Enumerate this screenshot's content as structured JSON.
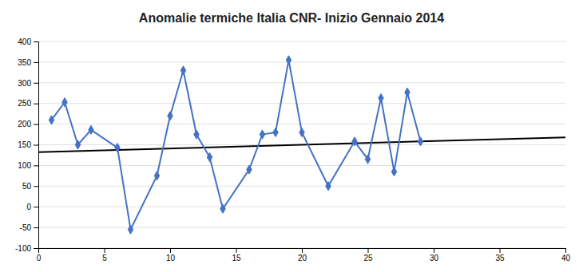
{
  "chart_data": {
    "type": "line",
    "title": "Anomalie termiche Italia CNR- Inizio Gennaio 2014",
    "xlim": [
      0,
      40
    ],
    "ylim": [
      -100,
      400
    ],
    "xticks": [
      0,
      5,
      10,
      15,
      20,
      25,
      30,
      35,
      40
    ],
    "yticks": [
      -100,
      -50,
      0,
      50,
      100,
      150,
      200,
      250,
      300,
      350,
      400
    ],
    "grid": "y",
    "series": [
      {
        "x": [
          1,
          2,
          3,
          4,
          6,
          7,
          9,
          10,
          11,
          12,
          13,
          14,
          16,
          17,
          18,
          19,
          20,
          22,
          24,
          25,
          26,
          27,
          28,
          29
        ],
        "values": [
          210,
          253,
          150,
          186,
          143,
          -55,
          75,
          220,
          330,
          175,
          120,
          -5,
          90,
          175,
          180,
          355,
          180,
          50,
          158,
          115,
          263,
          85,
          277,
          158
        ],
        "color": "#4472C4",
        "marker": "diamond"
      },
      {
        "x": [
          0,
          40
        ],
        "values": [
          132,
          168
        ],
        "color": "#000000"
      }
    ]
  }
}
